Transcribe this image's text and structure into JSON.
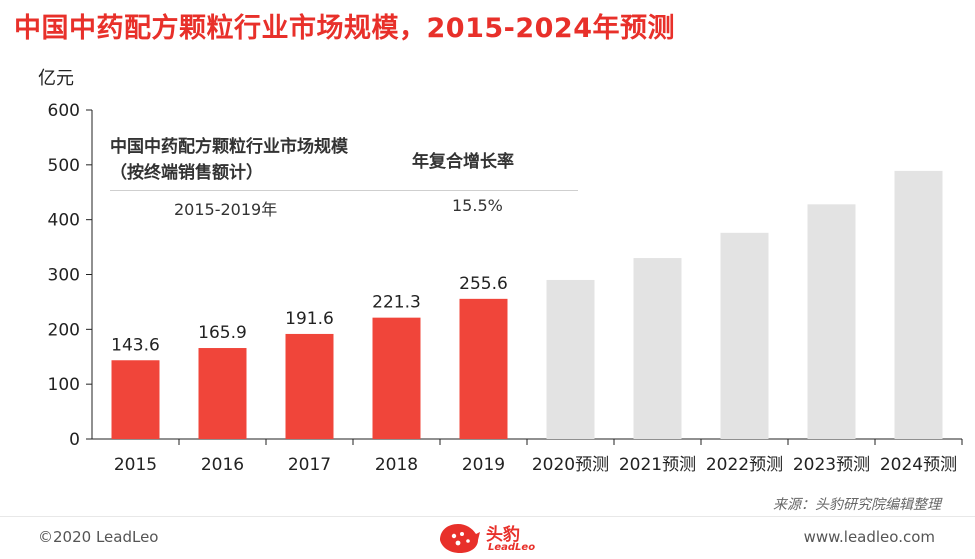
{
  "title": "中国中药配方颗粒行业市场规模，2015-2024年预测",
  "unit_label": "亿元",
  "cagr_table": {
    "header_metric": "中国中药配方颗粒行业市场规模（按终端销售额计）",
    "header_rate": "年复合增长率",
    "period": "2015-2019年",
    "rate": "15.5%"
  },
  "source": "来源：头豹研究院编辑整理",
  "footer": {
    "copyright": "©2020 LeadLeo",
    "website": "www.leadleo.com",
    "logo_text": "头豹",
    "logo_sub": "LeadLeo"
  },
  "colors": {
    "title": "#e8302a",
    "actual_bar": "#f0453a",
    "forecast_bar": "#e3e3e3"
  },
  "chart_data": {
    "type": "bar",
    "categories": [
      "2015",
      "2016",
      "2017",
      "2018",
      "2019",
      "2020预测",
      "2021预测",
      "2022预测",
      "2023预测",
      "2024预测"
    ],
    "values": [
      143.6,
      165.9,
      191.6,
      221.3,
      255.6,
      290,
      330,
      376,
      428,
      489
    ],
    "value_labels": [
      "143.6",
      "165.9",
      "191.6",
      "221.3",
      "255.6",
      "",
      "",
      "",
      "",
      ""
    ],
    "actual_count": 5,
    "ylim": [
      0,
      600
    ],
    "yticks": [
      0,
      100,
      200,
      300,
      400,
      500,
      600
    ],
    "ylabel": "亿元",
    "xlabel": "",
    "grid": false,
    "legend": "none"
  }
}
